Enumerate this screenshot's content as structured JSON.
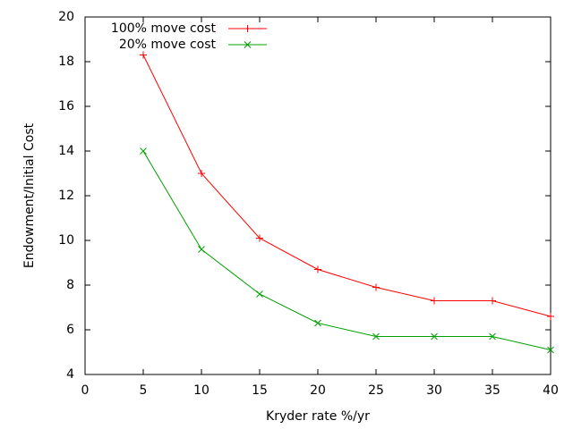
{
  "chart_data": {
    "type": "line",
    "xlabel": "Kryder rate %/yr",
    "ylabel": "Endowment/Initial Cost",
    "x": [
      5,
      10,
      15,
      20,
      25,
      30,
      35,
      40
    ],
    "series": [
      {
        "name": "100% move cost",
        "color": "#ff0000",
        "marker": "plus",
        "values": [
          18.3,
          13.0,
          10.1,
          8.7,
          7.9,
          7.3,
          7.3,
          6.6
        ]
      },
      {
        "name": "20% move cost",
        "color": "#00a000",
        "marker": "cross",
        "values": [
          14.0,
          9.6,
          7.6,
          6.3,
          5.7,
          5.7,
          5.7,
          5.1
        ]
      }
    ],
    "xlim": [
      0,
      40
    ],
    "xticks": [
      0,
      5,
      10,
      15,
      20,
      25,
      30,
      35,
      40
    ],
    "ylim": [
      4,
      20
    ],
    "yticks": [
      4,
      6,
      8,
      10,
      12,
      14,
      16,
      18,
      20
    ],
    "grid": false,
    "legend": "top-left"
  }
}
